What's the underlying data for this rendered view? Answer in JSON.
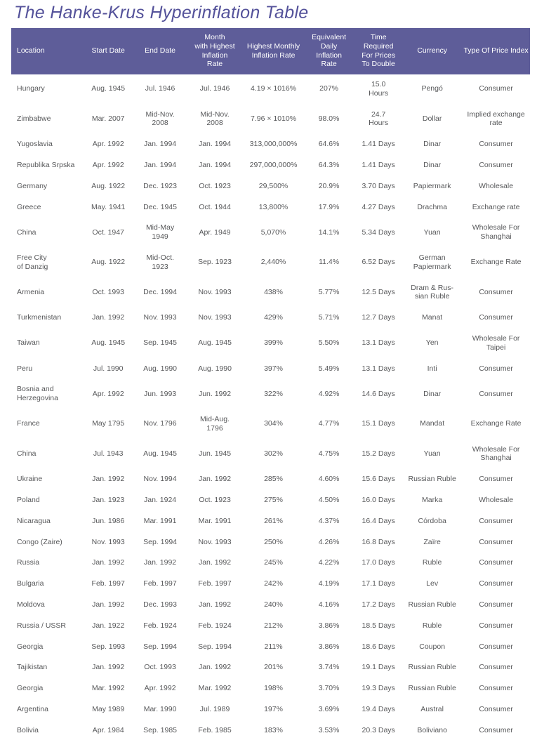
{
  "colors": {
    "header_bg": "#5e5d99",
    "title": "#54529a",
    "text": "#57585a",
    "page_bg": "#ffffff"
  },
  "chart_data": {
    "type": "table",
    "title": "The Hanke-Krus Hyperinflation Table",
    "columns": [
      "Location",
      "Start Date",
      "End Date",
      "Month\nwith Highest\nInflation\nRate",
      "Highest Monthly\nInflation Rate",
      "Equivalent\nDaily\nInflation\nRate",
      "Time\nRequired\nFor Prices\nTo Double",
      "Currency",
      "Type Of Price Index"
    ],
    "rows": [
      [
        "Hungary",
        "Aug. 1945",
        "Jul. 1946",
        "Jul. 1946",
        "4.19 × 1016%",
        "207%",
        "15.0\nHours",
        "Pengó",
        "Consumer"
      ],
      [
        "Zimbabwe",
        "Mar. 2007",
        "Mid-Nov.\n2008",
        "Mid-Nov.\n2008",
        "7.96 × 1010%",
        "98.0%",
        "24.7\nHours",
        "Dollar",
        "Implied exchange\nrate"
      ],
      [
        "Yugoslavia",
        "Apr. 1992",
        "Jan. 1994",
        "Jan. 1994",
        "313,000,000%",
        "64.6%",
        "1.41 Days",
        "Dinar",
        "Consumer"
      ],
      [
        "Republika Srpska",
        "Apr. 1992",
        "Jan. 1994",
        "Jan. 1994",
        "297,000,000%",
        "64.3%",
        "1.41 Days",
        "Dinar",
        "Consumer"
      ],
      [
        "Germany",
        "Aug. 1922",
        "Dec. 1923",
        "Oct. 1923",
        "29,500%",
        "20.9%",
        "3.70 Days",
        "Papiermark",
        "Wholesale"
      ],
      [
        "Greece",
        "May. 1941",
        "Dec. 1945",
        "Oct. 1944",
        "13,800%",
        "17.9%",
        "4.27 Days",
        "Drachma",
        "Exchange rate"
      ],
      [
        "China",
        "Oct. 1947",
        "Mid-May\n1949",
        "Apr. 1949",
        "5,070%",
        "14.1%",
        "5.34 Days",
        "Yuan",
        "Wholesale For\nShanghai"
      ],
      [
        "Free City\nof Danzig",
        "Aug. 1922",
        "Mid-Oct.\n1923",
        "Sep. 1923",
        "2,440%",
        "11.4%",
        "6.52 Days",
        "German\nPapiermark",
        "Exchange Rate"
      ],
      [
        "Armenia",
        "Oct. 1993",
        "Dec. 1994",
        "Nov. 1993",
        "438%",
        "5.77%",
        "12.5 Days",
        "Dram & Rus-\nsian Ruble",
        "Consumer"
      ],
      [
        "Turkmenistan",
        "Jan. 1992",
        "Nov. 1993",
        "Nov. 1993",
        "429%",
        "5.71%",
        "12.7 Days",
        "Manat",
        "Consumer"
      ],
      [
        "Taiwan",
        "Aug. 1945",
        "Sep. 1945",
        "Aug. 1945",
        "399%",
        "5.50%",
        "13.1 Days",
        "Yen",
        "Wholesale For\nTaipei"
      ],
      [
        "Peru",
        "Jul. 1990",
        "Aug. 1990",
        "Aug. 1990",
        "397%",
        "5.49%",
        "13.1 Days",
        "Inti",
        "Consumer"
      ],
      [
        "Bosnia and\nHerzegovina",
        "Apr. 1992",
        "Jun. 1993",
        "Jun. 1992",
        "322%",
        "4.92%",
        "14.6 Days",
        "Dinar",
        "Consumer"
      ],
      [
        "France",
        "May 1795",
        "Nov. 1796",
        "Mid-Aug.\n1796",
        "304%",
        "4.77%",
        "15.1 Days",
        "Mandat",
        "Exchange Rate"
      ],
      [
        "China",
        "Jul. 1943",
        "Aug. 1945",
        "Jun. 1945",
        "302%",
        "4.75%",
        "15.2 Days",
        "Yuan",
        "Wholesale For\nShanghai"
      ],
      [
        "Ukraine",
        "Jan. 1992",
        "Nov. 1994",
        "Jan. 1992",
        "285%",
        "4.60%",
        "15.6 Days",
        "Russian Ruble",
        "Consumer"
      ],
      [
        "Poland",
        "Jan. 1923",
        "Jan. 1924",
        "Oct. 1923",
        "275%",
        "4.50%",
        "16.0 Days",
        "Marka",
        "Wholesale"
      ],
      [
        "Nicaragua",
        "Jun. 1986",
        "Mar. 1991",
        "Mar. 1991",
        "261%",
        "4.37%",
        "16.4 Days",
        "Córdoba",
        "Consumer"
      ],
      [
        "Congo (Zaire)",
        "Nov. 1993",
        "Sep. 1994",
        "Nov. 1993",
        "250%",
        "4.26%",
        "16.8 Days",
        "Zaïre",
        "Consumer"
      ],
      [
        "Russia",
        "Jan. 1992",
        "Jan. 1992",
        "Jan. 1992",
        "245%",
        "4.22%",
        "17.0 Days",
        "Ruble",
        "Consumer"
      ],
      [
        "Bulgaria",
        "Feb. 1997",
        "Feb. 1997",
        "Feb. 1997",
        "242%",
        "4.19%",
        "17.1 Days",
        "Lev",
        "Consumer"
      ],
      [
        "Moldova",
        "Jan. 1992",
        "Dec. 1993",
        "Jan. 1992",
        "240%",
        "4.16%",
        "17.2 Days",
        "Russian Ruble",
        "Consumer"
      ],
      [
        "Russia / USSR",
        "Jan. 1922",
        "Feb. 1924",
        "Feb. 1924",
        "212%",
        "3.86%",
        "18.5 Days",
        "Ruble",
        "Consumer"
      ],
      [
        "Georgia",
        "Sep. 1993",
        "Sep. 1994",
        "Sep. 1994",
        "211%",
        "3.86%",
        "18.6 Days",
        "Coupon",
        "Consumer"
      ],
      [
        "Tajikistan",
        "Jan. 1992",
        "Oct. 1993",
        "Jan. 1992",
        "201%",
        "3.74%",
        "19.1 Days",
        "Russian Ruble",
        "Consumer"
      ],
      [
        "Georgia",
        "Mar. 1992",
        "Apr. 1992",
        "Mar. 1992",
        "198%",
        "3.70%",
        "19.3 Days",
        "Russian Ruble",
        "Consumer"
      ],
      [
        "Argentina",
        "May 1989",
        "Mar. 1990",
        "Jul. 1989",
        "197%",
        "3.69%",
        "19.4 Days",
        "Austral",
        "Consumer"
      ],
      [
        "Bolivia",
        "Apr. 1984",
        "Sep. 1985",
        "Feb. 1985",
        "183%",
        "3.53%",
        "20.3 Days",
        "Boliviano",
        "Consumer"
      ]
    ]
  }
}
